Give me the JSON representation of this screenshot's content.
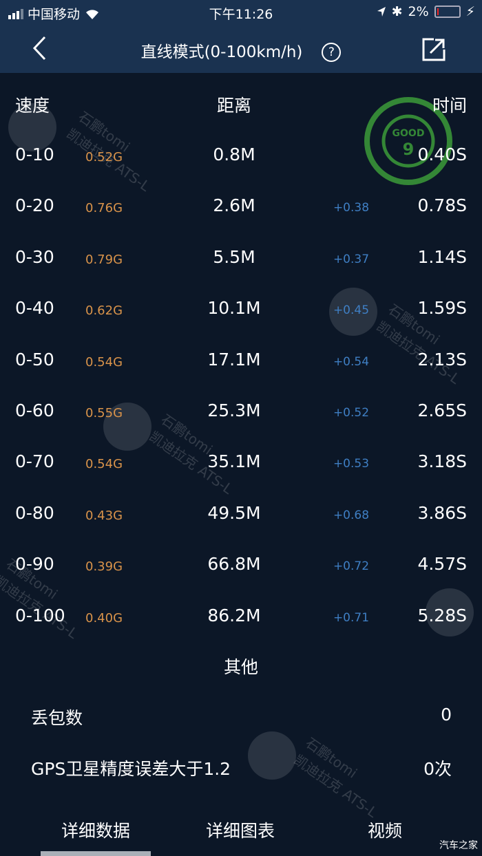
{
  "status_bar": {
    "carrier": "中国移动",
    "time": "下午11:26",
    "battery": "2%"
  },
  "nav": {
    "title": "直线模式(0-100km/h)",
    "help_glyph": "?"
  },
  "table": {
    "headers": {
      "speed": "速度",
      "distance": "距离",
      "time": "时间"
    },
    "rows": [
      {
        "speed": "0-10",
        "g": "0.52G",
        "distance": "0.8M",
        "gain": "",
        "time": "0.40S"
      },
      {
        "speed": "0-20",
        "g": "0.76G",
        "distance": "2.6M",
        "gain": "+0.38",
        "time": "0.78S"
      },
      {
        "speed": "0-30",
        "g": "0.79G",
        "distance": "5.5M",
        "gain": "+0.37",
        "time": "1.14S"
      },
      {
        "speed": "0-40",
        "g": "0.62G",
        "distance": "10.1M",
        "gain": "+0.45",
        "time": "1.59S"
      },
      {
        "speed": "0-50",
        "g": "0.54G",
        "distance": "17.1M",
        "gain": "+0.54",
        "time": "2.13S"
      },
      {
        "speed": "0-60",
        "g": "0.55G",
        "distance": "25.3M",
        "gain": "+0.52",
        "time": "2.65S"
      },
      {
        "speed": "0-70",
        "g": "0.54G",
        "distance": "35.1M",
        "gain": "+0.53",
        "time": "3.18S"
      },
      {
        "speed": "0-80",
        "g": "0.43G",
        "distance": "49.5M",
        "gain": "+0.68",
        "time": "3.86S"
      },
      {
        "speed": "0-90",
        "g": "0.39G",
        "distance": "66.8M",
        "gain": "+0.72",
        "time": "4.57S"
      },
      {
        "speed": "0-100",
        "g": "0.40G",
        "distance": "86.2M",
        "gain": "+0.71",
        "time": "5.28S"
      }
    ]
  },
  "other": {
    "title": "其他",
    "items": [
      {
        "label": "丢包数",
        "value": "0"
      },
      {
        "label": "GPS卫星精度误差大于1.2",
        "value": "0次"
      }
    ]
  },
  "tabs": [
    {
      "label": "详细数据",
      "active": true
    },
    {
      "label": "详细图表"
    },
    {
      "label": "视频"
    }
  ],
  "watermark": "石鹏tomi\n凯迪拉克 ATS-L",
  "stamp_text": "GOOD 9",
  "site_logo": "汽车之家",
  "colors": {
    "header_bg": "#1a3250",
    "body_bg": "#0c1727",
    "g_value": "#d9934a",
    "gain": "#3f7fc4",
    "stamp": "#3fa33a"
  }
}
